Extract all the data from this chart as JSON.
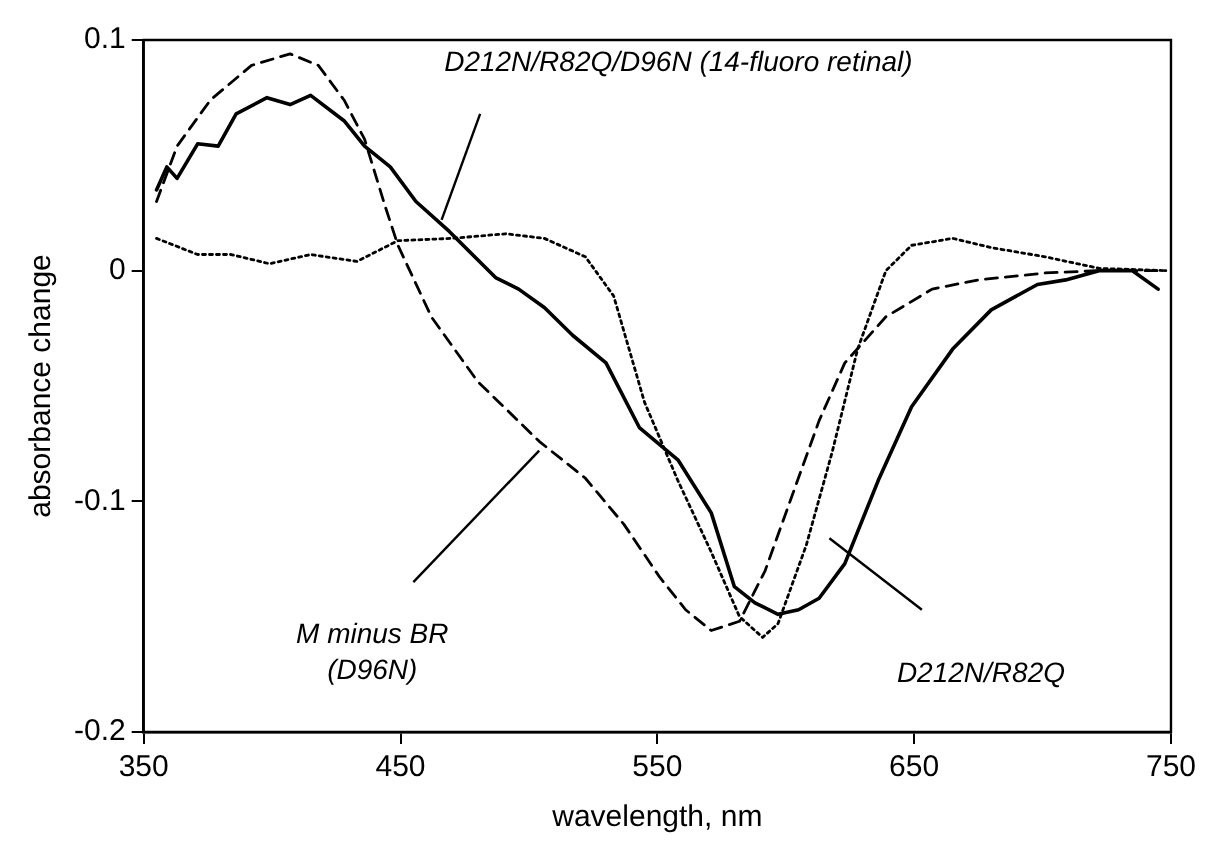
{
  "chart_data": {
    "type": "line",
    "xlabel": "wavelength, nm",
    "ylabel": "absorbance change",
    "xlim": [
      350,
      750
    ],
    "xticks": [
      350,
      450,
      550,
      650,
      750
    ],
    "ylim": [
      -0.2,
      0.1
    ],
    "yticks": [
      {
        "value": -0.2,
        "label": "-0.2"
      },
      {
        "value": -0.1,
        "label": "-0.1"
      },
      {
        "value": 0,
        "label": "0"
      },
      {
        "value": 0.1,
        "label": "0.1"
      }
    ],
    "grid": false,
    "legend": false,
    "marker": "none",
    "annotations": [
      "D212N/R82Q/D96N (14-fluoro retinal)",
      "M minus BR\n(D96N)",
      "D212N/R82Q"
    ],
    "series": [
      {
        "color": "#000000",
        "line_style": "solid",
        "x": [
          355,
          359,
          363,
          371,
          379,
          386,
          398,
          407,
          415,
          428,
          436,
          446,
          456,
          469,
          487,
          496,
          506,
          517,
          530,
          543,
          558,
          571,
          580,
          588,
          597,
          605,
          613,
          623,
          636,
          649,
          665,
          680,
          698,
          709,
          722,
          735,
          745
        ],
        "values": [
          0.035,
          0.045,
          0.04,
          0.055,
          0.054,
          0.068,
          0.075,
          0.072,
          0.076,
          0.065,
          0.054,
          0.045,
          0.03,
          0.017,
          -0.003,
          -0.008,
          -0.016,
          -0.028,
          -0.04,
          -0.068,
          -0.082,
          -0.105,
          -0.137,
          -0.144,
          -0.149,
          -0.147,
          -0.142,
          -0.127,
          -0.091,
          -0.059,
          -0.034,
          -0.017,
          -0.006,
          -0.004,
          0,
          0,
          -0.008
        ]
      },
      {
        "color": "#000000",
        "line_style": "dashed",
        "x": [
          355,
          363,
          376,
          392,
          407,
          418,
          428,
          436,
          444,
          449,
          462,
          480,
          504,
          522,
          537,
          551,
          561,
          571,
          582,
          592,
          602,
          613,
          623,
          639,
          657,
          675,
          701,
          722,
          748
        ],
        "values": [
          0.03,
          0.054,
          0.074,
          0.089,
          0.094,
          0.089,
          0.074,
          0.057,
          0.028,
          0.011,
          -0.02,
          -0.048,
          -0.074,
          -0.09,
          -0.11,
          -0.133,
          -0.147,
          -0.156,
          -0.152,
          -0.13,
          -0.099,
          -0.065,
          -0.04,
          -0.02,
          -0.008,
          -0.004,
          -0.001,
          0,
          0
        ]
      },
      {
        "color": "#000000",
        "line_style": "dotted",
        "x": [
          355,
          371,
          384,
          399,
          415,
          433,
          449,
          470,
          491,
          506,
          522,
          533,
          545,
          558,
          571,
          582,
          591,
          597,
          608,
          618,
          628,
          639,
          649,
          665,
          680,
          701,
          722,
          748
        ],
        "values": [
          0.014,
          0.007,
          0.007,
          0.003,
          0.007,
          0.004,
          0.013,
          0.014,
          0.016,
          0.014,
          0.006,
          -0.011,
          -0.057,
          -0.091,
          -0.122,
          -0.15,
          -0.159,
          -0.153,
          -0.119,
          -0.079,
          -0.034,
          0,
          0.011,
          0.014,
          0.01,
          0.006,
          0.001,
          0
        ]
      }
    ]
  }
}
